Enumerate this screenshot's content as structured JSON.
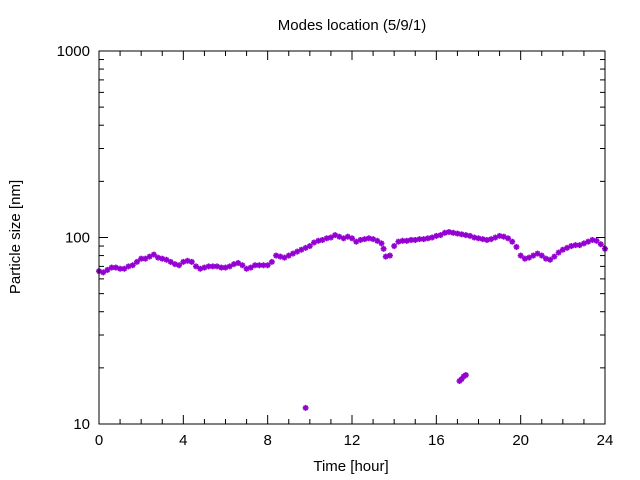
{
  "chart_data": {
    "type": "scatter",
    "title": "Modes location (5/9/1)",
    "xlabel": "Time [hour]",
    "ylabel": "Particle size [nm]",
    "xlim": [
      0,
      24
    ],
    "ylim": [
      10,
      1000
    ],
    "yscale": "log",
    "grid": false,
    "legend": "none",
    "marker_color": "#9400d3",
    "x_ticks": [
      0,
      4,
      8,
      12,
      16,
      20,
      24
    ],
    "x_tick_labels": [
      "0",
      "4",
      "8",
      "12",
      "16",
      "20",
      "24"
    ],
    "y_ticks": [
      10,
      100,
      1000
    ],
    "y_tick_labels": [
      "10",
      "100",
      "1000"
    ],
    "series": [
      {
        "points": [
          [
            0.0,
            66
          ],
          [
            0.2,
            65
          ],
          [
            0.4,
            67
          ],
          [
            0.6,
            69
          ],
          [
            0.8,
            69
          ],
          [
            1.0,
            68
          ],
          [
            1.2,
            68
          ],
          [
            1.4,
            70
          ],
          [
            1.6,
            71
          ],
          [
            1.8,
            74
          ],
          [
            2.0,
            77
          ],
          [
            2.2,
            77
          ],
          [
            2.4,
            79
          ],
          [
            2.6,
            81
          ],
          [
            2.8,
            78
          ],
          [
            3.0,
            77
          ],
          [
            3.2,
            76
          ],
          [
            3.4,
            74
          ],
          [
            3.6,
            72
          ],
          [
            3.8,
            71
          ],
          [
            4.0,
            74
          ],
          [
            4.2,
            75
          ],
          [
            4.4,
            74
          ],
          [
            4.6,
            70
          ],
          [
            4.8,
            68
          ],
          [
            5.0,
            69
          ],
          [
            5.2,
            70
          ],
          [
            5.4,
            70
          ],
          [
            5.6,
            70
          ],
          [
            5.8,
            69
          ],
          [
            6.0,
            69
          ],
          [
            6.2,
            70
          ],
          [
            6.4,
            72
          ],
          [
            6.6,
            73
          ],
          [
            6.8,
            71
          ],
          [
            7.0,
            68
          ],
          [
            7.2,
            69
          ],
          [
            7.4,
            71
          ],
          [
            7.6,
            71
          ],
          [
            7.8,
            71
          ],
          [
            8.0,
            71
          ],
          [
            8.2,
            74
          ],
          [
            8.4,
            80
          ],
          [
            8.6,
            79
          ],
          [
            8.8,
            78
          ],
          [
            9.0,
            80
          ],
          [
            9.2,
            82
          ],
          [
            9.4,
            84
          ],
          [
            9.6,
            86
          ],
          [
            9.8,
            88
          ],
          [
            10.0,
            90
          ],
          [
            10.2,
            94
          ],
          [
            10.4,
            96
          ],
          [
            10.6,
            97
          ],
          [
            10.8,
            99
          ],
          [
            11.0,
            100
          ],
          [
            11.2,
            103
          ],
          [
            11.4,
            101
          ],
          [
            11.6,
            99
          ],
          [
            11.8,
            101
          ],
          [
            12.0,
            99
          ],
          [
            12.2,
            95
          ],
          [
            12.4,
            97
          ],
          [
            12.6,
            98
          ],
          [
            12.8,
            99
          ],
          [
            13.0,
            98
          ],
          [
            13.2,
            96
          ],
          [
            13.4,
            93
          ],
          [
            13.5,
            87
          ],
          [
            13.6,
            79
          ],
          [
            13.8,
            80
          ],
          [
            14.0,
            90
          ],
          [
            14.2,
            95
          ],
          [
            14.4,
            96
          ],
          [
            14.6,
            96
          ],
          [
            14.8,
            97
          ],
          [
            15.0,
            97
          ],
          [
            15.2,
            98
          ],
          [
            15.4,
            98
          ],
          [
            15.6,
            99
          ],
          [
            15.8,
            100
          ],
          [
            16.0,
            102
          ],
          [
            16.2,
            103
          ],
          [
            16.4,
            106
          ],
          [
            16.6,
            107
          ],
          [
            16.8,
            106
          ],
          [
            17.0,
            105
          ],
          [
            17.2,
            104
          ],
          [
            17.4,
            103
          ],
          [
            17.6,
            102
          ],
          [
            17.8,
            100
          ],
          [
            18.0,
            99
          ],
          [
            18.2,
            98
          ],
          [
            18.4,
            97
          ],
          [
            18.6,
            98
          ],
          [
            18.8,
            100
          ],
          [
            19.0,
            102
          ],
          [
            19.2,
            101
          ],
          [
            19.4,
            99
          ],
          [
            19.6,
            95
          ],
          [
            19.8,
            89
          ],
          [
            20.0,
            80
          ],
          [
            20.2,
            77
          ],
          [
            20.4,
            78
          ],
          [
            20.6,
            80
          ],
          [
            20.8,
            82
          ],
          [
            21.0,
            80
          ],
          [
            21.2,
            77
          ],
          [
            21.4,
            76
          ],
          [
            21.6,
            79
          ],
          [
            21.8,
            83
          ],
          [
            22.0,
            86
          ],
          [
            22.2,
            88
          ],
          [
            22.4,
            90
          ],
          [
            22.6,
            91
          ],
          [
            22.8,
            91
          ],
          [
            23.0,
            93
          ],
          [
            23.2,
            95
          ],
          [
            23.4,
            97
          ],
          [
            23.6,
            96
          ],
          [
            23.8,
            92
          ],
          [
            24.0,
            87
          ],
          [
            9.8,
            12.2
          ],
          [
            17.1,
            17
          ],
          [
            17.2,
            17.4
          ],
          [
            17.3,
            18
          ],
          [
            17.4,
            18.3
          ]
        ]
      }
    ]
  }
}
